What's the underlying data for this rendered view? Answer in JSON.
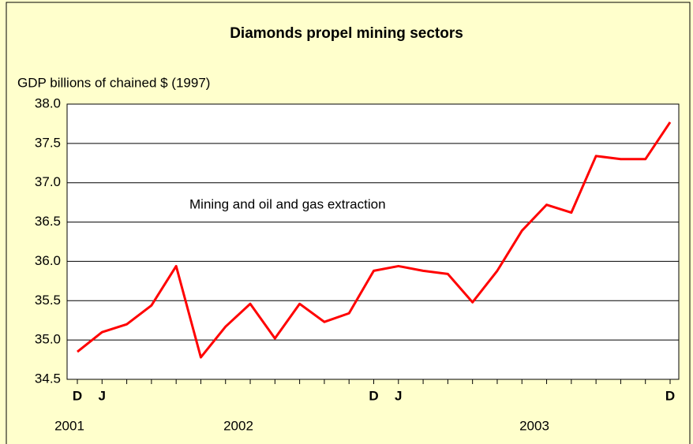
{
  "chart_data": {
    "type": "line",
    "title": "Diamonds propel mining sectors",
    "y_label": "GDP billions of chained $ (1997)",
    "annotation": "Mining and oil and gas extraction",
    "categories": [
      "D",
      "J",
      null,
      null,
      null,
      null,
      null,
      null,
      null,
      null,
      null,
      null,
      "D",
      "J",
      null,
      null,
      null,
      null,
      null,
      null,
      null,
      null,
      null,
      null,
      "D"
    ],
    "years": [
      "2001",
      "2002",
      "2003"
    ],
    "series": [
      {
        "name": "Mining and oil and gas extraction",
        "color": "#ff0000",
        "values": [
          34.85,
          35.1,
          35.2,
          35.44,
          35.94,
          34.78,
          35.17,
          35.46,
          35.02,
          35.46,
          35.23,
          35.34,
          35.88,
          35.94,
          35.88,
          35.84,
          35.48,
          35.88,
          36.39,
          36.72,
          36.62,
          37.34,
          37.3,
          37.3,
          37.77
        ]
      }
    ],
    "ylim": [
      34.5,
      38.0
    ],
    "yticks": [
      {
        "value": 34.5,
        "label": "34.5"
      },
      {
        "value": 35,
        "label": "35.0"
      },
      {
        "value": 35.5,
        "label": "35.5"
      },
      {
        "value": 36,
        "label": "36.0"
      },
      {
        "value": 36.5,
        "label": "36.5"
      },
      {
        "value": 37,
        "label": "37.0"
      },
      {
        "value": 37.5,
        "label": "37.5"
      },
      {
        "value": 38,
        "label": "38.0"
      }
    ],
    "grid": true
  }
}
